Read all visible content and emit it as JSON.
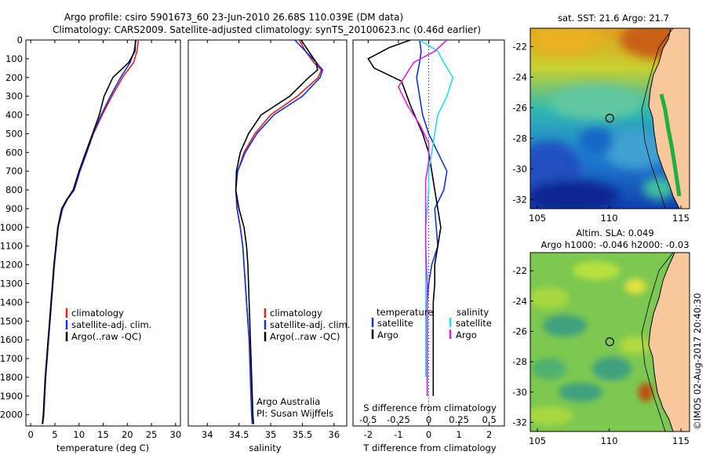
{
  "colors": {
    "climatology": "#e0201e",
    "satellite": "#1133dd",
    "argo": "#000000",
    "salinity_sat": "#22ddee",
    "salinity_argo": "#dd22dd",
    "land": "#f8c89a"
  },
  "header": {
    "title_line1": "Argo profile: csiro 5901673_60 23-Jun-2010 26.68S 110.039E (DM data)",
    "title_line2": "Climatology: CARS2009. Satellite-adjusted climatology: synTS_20100623.nc (0.46d earlier)"
  },
  "legend": {
    "climatology": "climatology",
    "satellite_adj": "satellite-adj. clim.",
    "argo": "Argo(..raw -QC)"
  },
  "diff_legend": {
    "temperature_head": "temperature",
    "salinity_head": "salinity",
    "satellite": "satellite",
    "argo": "Argo"
  },
  "annotations": {
    "argo_australia": "Argo Australia",
    "pi": "PI: Susan Wijffels"
  },
  "map_sst": {
    "title": "sat. SST: 21.6  Argo: 21.7"
  },
  "map_sla": {
    "title_line1": "Altim. SLA: 0.049",
    "title_line2": "Argo h1000: -0.046 h2000: -0.03"
  },
  "watermark": "©IMOS 02-Aug-2017 20:40:30",
  "chart_data": [
    {
      "type": "line",
      "name": "temperature-profile",
      "xlabel": "temperature (deg C)",
      "ylabel": "",
      "xlim": [
        -1,
        31
      ],
      "ylim": [
        2060,
        0
      ],
      "xticks": [
        0,
        5,
        10,
        15,
        20,
        25,
        30
      ],
      "yticks": [
        0,
        100,
        200,
        300,
        400,
        500,
        600,
        700,
        800,
        900,
        1000,
        1100,
        1200,
        1300,
        1400,
        1500,
        1600,
        1700,
        1800,
        1900,
        2000
      ],
      "series": [
        {
          "name": "climatology",
          "color": "#e0201e",
          "x": [
            22.3,
            22.0,
            21.3,
            19.0,
            16.8,
            14.8,
            13.0,
            11.6,
            10.2,
            9.0,
            7.6,
            6.6,
            5.7,
            5.3,
            4.9,
            4.6,
            4.3,
            4.0,
            3.7,
            3.4,
            3.1,
            2.9,
            2.7,
            2.5
          ],
          "y": [
            0,
            60,
            120,
            200,
            300,
            400,
            500,
            600,
            700,
            800,
            850,
            900,
            1000,
            1100,
            1200,
            1300,
            1400,
            1500,
            1600,
            1700,
            1800,
            1900,
            2000,
            2050
          ]
        },
        {
          "name": "satellite",
          "color": "#1133dd",
          "x": [
            21.8,
            21.4,
            20.6,
            18.6,
            16.5,
            14.6,
            12.9,
            11.6,
            10.2,
            9.0,
            7.6,
            6.6,
            5.7,
            5.3,
            4.9,
            4.6,
            4.3,
            4.0,
            3.7,
            3.4,
            3.1,
            2.9,
            2.7,
            2.5
          ],
          "y": [
            0,
            60,
            120,
            200,
            300,
            400,
            500,
            600,
            700,
            800,
            850,
            900,
            1000,
            1100,
            1200,
            1300,
            1400,
            1500,
            1600,
            1700,
            1800,
            1900,
            2000,
            2050
          ]
        },
        {
          "name": "argo",
          "color": "#000000",
          "x": [
            21.7,
            21.6,
            20.3,
            17.0,
            15.2,
            14.2,
            12.8,
            11.4,
            10.0,
            8.8,
            7.5,
            6.4,
            5.6,
            5.2,
            4.8,
            4.5,
            4.2,
            3.9,
            3.6,
            3.3,
            3.0,
            2.8,
            2.6,
            2.4
          ],
          "y": [
            0,
            60,
            120,
            200,
            300,
            400,
            500,
            600,
            700,
            800,
            850,
            900,
            1000,
            1100,
            1200,
            1300,
            1400,
            1500,
            1600,
            1700,
            1800,
            1900,
            2000,
            2050
          ]
        }
      ]
    },
    {
      "type": "line",
      "name": "salinity-profile",
      "xlabel": "salinity",
      "ylabel": "",
      "xlim": [
        33.7,
        36.2
      ],
      "ylim": [
        2060,
        0
      ],
      "xticks": [
        34,
        34.5,
        35,
        35.5,
        36
      ],
      "series": [
        {
          "name": "climatology",
          "color": "#e0201e",
          "x": [
            35.45,
            35.55,
            35.68,
            35.8,
            35.75,
            35.42,
            35.0,
            34.75,
            34.58,
            34.48,
            34.45,
            34.47,
            34.52,
            34.56,
            34.58,
            34.6,
            34.62,
            34.64,
            34.66,
            34.67,
            34.68,
            34.69,
            34.7,
            34.71
          ],
          "y": [
            0,
            60,
            120,
            160,
            200,
            300,
            400,
            500,
            600,
            700,
            800,
            900,
            1000,
            1100,
            1200,
            1300,
            1400,
            1500,
            1600,
            1700,
            1800,
            1900,
            2000,
            2050
          ]
        },
        {
          "name": "satellite",
          "color": "#1133dd",
          "x": [
            35.38,
            35.55,
            35.72,
            35.82,
            35.78,
            35.5,
            35.05,
            34.78,
            34.6,
            34.48,
            34.45,
            34.47,
            34.52,
            34.56,
            34.58,
            34.6,
            34.62,
            34.64,
            34.66,
            34.67,
            34.68,
            34.69,
            34.7,
            34.71
          ],
          "y": [
            0,
            60,
            120,
            160,
            200,
            300,
            400,
            500,
            600,
            700,
            800,
            900,
            1000,
            1100,
            1200,
            1300,
            1400,
            1500,
            1600,
            1700,
            1800,
            1900,
            2000,
            2050
          ]
        },
        {
          "name": "argo",
          "color": "#000000",
          "x": [
            35.48,
            35.6,
            35.72,
            35.74,
            35.6,
            35.3,
            34.85,
            34.65,
            34.52,
            34.46,
            34.45,
            34.5,
            34.58,
            34.62,
            34.64,
            34.65,
            34.66,
            34.67,
            34.68,
            34.69,
            34.7,
            34.71,
            34.72,
            34.73
          ],
          "y": [
            0,
            60,
            120,
            160,
            200,
            300,
            400,
            500,
            600,
            700,
            800,
            900,
            1000,
            1100,
            1200,
            1300,
            1400,
            1500,
            1600,
            1700,
            1800,
            1900,
            2000,
            2050
          ]
        }
      ]
    },
    {
      "type": "line",
      "name": "difference-profile",
      "xlabel": "T difference from climatology",
      "xlabel2": "S difference from climatology",
      "xlim": [
        -2.5,
        2.5
      ],
      "ylim": [
        2060,
        0
      ],
      "xticks": [
        -2,
        -1,
        0,
        1,
        2
      ],
      "xticks_top": [
        "-0.5",
        "-0.25",
        "0",
        "0.25",
        "0.5"
      ],
      "series": [
        {
          "name": "T satellite",
          "color": "#1133dd",
          "x": [
            -0.3,
            -0.25,
            -0.3,
            -0.4,
            -0.3,
            -0.2,
            0.0,
            0.3,
            0.6,
            0.5,
            0.2,
            0.25,
            0.3,
            0.1,
            0.0,
            -0.05,
            -0.05,
            -0.05,
            -0.05,
            -0.05,
            -0.05
          ],
          "y": [
            0,
            60,
            120,
            200,
            300,
            400,
            500,
            600,
            700,
            800,
            900,
            1000,
            1100,
            1200,
            1300,
            1400,
            1500,
            1600,
            1700,
            1800,
            1900
          ]
        },
        {
          "name": "T argo",
          "color": "#000000",
          "x": [
            -0.6,
            -1.3,
            -2.0,
            -1.8,
            -0.9,
            -0.6,
            -0.2,
            0.0,
            0.1,
            0.2,
            0.3,
            0.4,
            0.3,
            0.2,
            0.2,
            0.15,
            0.15,
            0.15,
            0.15,
            0.15,
            0.15
          ],
          "y": [
            0,
            40,
            100,
            150,
            220,
            350,
            500,
            600,
            700,
            800,
            900,
            1000,
            1100,
            1200,
            1300,
            1400,
            1500,
            1600,
            1700,
            1800,
            1900
          ]
        },
        {
          "name": "S satellite",
          "color": "#22ddee",
          "x": [
            -0.3,
            0.3,
            0.5,
            0.8,
            0.6,
            0.3,
            0.2,
            0.1,
            0.0,
            0.0,
            -0.05,
            -0.1,
            -0.1,
            -0.1,
            -0.1,
            -0.1,
            -0.1,
            -0.1,
            -0.1,
            -0.1
          ],
          "y": [
            0,
            60,
            120,
            200,
            300,
            400,
            500,
            600,
            700,
            800,
            900,
            1000,
            1100,
            1200,
            1300,
            1400,
            1500,
            1600,
            1700,
            1800
          ]
        },
        {
          "name": "S argo",
          "color": "#dd22dd",
          "x": [
            0.6,
            0.2,
            -0.5,
            -1.0,
            -0.7,
            -0.3,
            0.0,
            0.0,
            -0.1,
            -0.1,
            -0.1,
            -0.1,
            -0.05,
            -0.05,
            -0.05,
            -0.05,
            -0.05,
            -0.05
          ],
          "y": [
            0,
            60,
            120,
            250,
            350,
            450,
            550,
            650,
            750,
            850,
            950,
            1100,
            1300,
            1500,
            1600,
            1700,
            1800,
            1900
          ]
        }
      ]
    },
    {
      "type": "heatmap",
      "name": "sst-map",
      "xlim": [
        104.5,
        115.6
      ],
      "ylim": [
        -32.6,
        -20.8
      ],
      "xticks": [
        105,
        110,
        115
      ],
      "yticks": [
        -22,
        -24,
        -26,
        -28,
        -30,
        -32
      ],
      "marker": {
        "lon": 110.039,
        "lat": -26.68
      }
    },
    {
      "type": "heatmap",
      "name": "sla-map",
      "xlim": [
        104.5,
        115.6
      ],
      "ylim": [
        -32.6,
        -20.8
      ],
      "xticks": [
        105,
        110,
        115
      ],
      "yticks": [
        -22,
        -24,
        -26,
        -28,
        -30,
        -32
      ],
      "marker": {
        "lon": 110.039,
        "lat": -26.68
      }
    }
  ]
}
